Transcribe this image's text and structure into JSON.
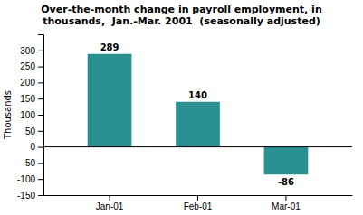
{
  "chart_data": {
    "type": "bar",
    "title": "Over-the-month change in payroll employment, in\nthousands,  Jan.-Mar. 2001  (seasonally adjusted)",
    "y_label": "Thousands",
    "categories": [
      "Jan-01",
      "Feb-01",
      "Mar-01"
    ],
    "values": [
      289,
      140,
      -86
    ],
    "color": "#2a9090",
    "ylim": [
      -150,
      350
    ],
    "yticks": [
      -150,
      -100,
      -50,
      0,
      50,
      100,
      150,
      200,
      250,
      300
    ],
    "data_labels": true,
    "grid": false
  }
}
